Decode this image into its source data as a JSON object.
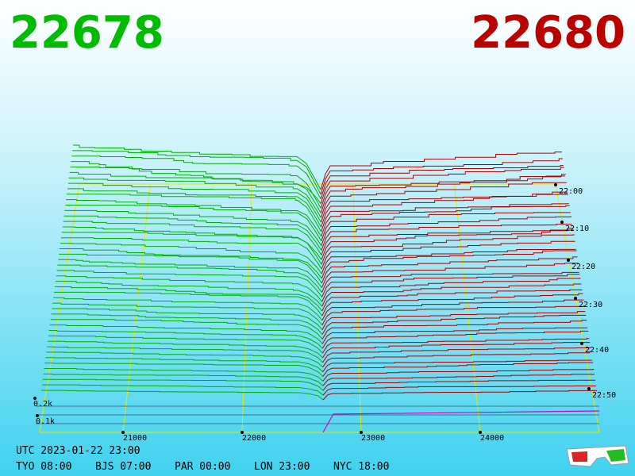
{
  "header": {
    "bid": "22678",
    "ask": "22680"
  },
  "price_axis": [
    "21000",
    "22000",
    "23000",
    "24000"
  ],
  "time_axis": [
    "22:00",
    "22:10",
    "22:20",
    "22:30",
    "22:40",
    "22:50"
  ],
  "depth_axis": [
    "0.2k",
    "0.1k"
  ],
  "footer": {
    "utc": "UTC 2023-01-22 23:00",
    "zones": [
      "TYO 08:00",
      "BJS 07:00",
      "PAR 00:00",
      "LON 23:00",
      "NYC 18:00"
    ]
  }
}
